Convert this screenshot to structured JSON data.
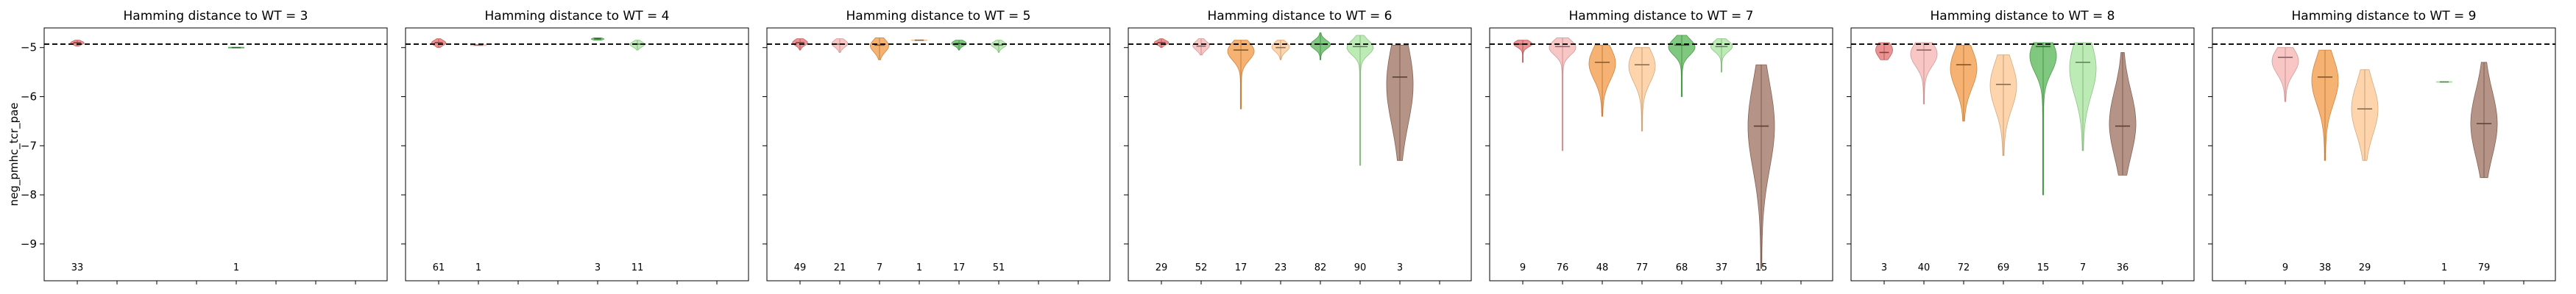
{
  "chart_data": {
    "type": "violin",
    "ylabel": "neg_pmhc_tcr_pae",
    "ylim": [
      -9.75,
      -4.6
    ],
    "yticks": [
      -5,
      -6,
      -7,
      -8,
      -9
    ],
    "reference_line": -4.93,
    "group_colors": [
      "#e57373",
      "#f7b6b6",
      "#f39c4a",
      "#fcc894",
      "#5cb85c",
      "#a9e5a0",
      "#a07565"
    ],
    "panels": [
      {
        "title": "Hamming distance to WT = 3",
        "violins": [
          {
            "pos": 1,
            "count": "33",
            "median": -4.9,
            "min": -4.97,
            "max": -4.85,
            "q1": -4.93,
            "q3": -4.88
          },
          {
            "pos": 5,
            "count": "1",
            "median": -5.0,
            "min": -5.0,
            "max": -5.0,
            "q1": -5.0,
            "q3": -5.0
          }
        ]
      },
      {
        "title": "Hamming distance to WT = 4",
        "violins": [
          {
            "pos": 1,
            "count": "61",
            "median": -4.9,
            "min": -5.0,
            "max": -4.82,
            "q1": -4.94,
            "q3": -4.87
          },
          {
            "pos": 2,
            "count": "1",
            "median": -4.95,
            "min": -4.95,
            "max": -4.95,
            "q1": -4.95,
            "q3": -4.95
          },
          {
            "pos": 5,
            "count": "3",
            "median": -4.82,
            "min": -4.85,
            "max": -4.8,
            "q1": -4.84,
            "q3": -4.81
          },
          {
            "pos": 6,
            "count": "11",
            "median": -4.93,
            "min": -5.05,
            "max": -4.85,
            "q1": -4.97,
            "q3": -4.9
          }
        ]
      },
      {
        "title": "Hamming distance to WT = 5",
        "violins": [
          {
            "pos": 1,
            "count": "49",
            "median": -4.9,
            "min": -5.05,
            "max": -4.82,
            "q1": -4.94,
            "q3": -4.86
          },
          {
            "pos": 2,
            "count": "21",
            "median": -4.93,
            "min": -5.1,
            "max": -4.82,
            "q1": -4.97,
            "q3": -4.87
          },
          {
            "pos": 3,
            "count": "7",
            "median": -4.95,
            "min": -5.25,
            "max": -4.8,
            "q1": -5.05,
            "q3": -4.88
          },
          {
            "pos": 4,
            "count": "1",
            "median": -4.85,
            "min": -4.85,
            "max": -4.85,
            "q1": -4.85,
            "q3": -4.85
          },
          {
            "pos": 5,
            "count": "17",
            "median": -4.92,
            "min": -5.05,
            "max": -4.85,
            "q1": -4.95,
            "q3": -4.88
          },
          {
            "pos": 6,
            "count": "51",
            "median": -4.95,
            "min": -5.1,
            "max": -4.85,
            "q1": -4.98,
            "q3": -4.9
          }
        ]
      },
      {
        "title": "Hamming distance to WT = 6",
        "violins": [
          {
            "pos": 1,
            "count": "29",
            "median": -4.9,
            "min": -5.0,
            "max": -4.82,
            "q1": -4.93,
            "q3": -4.87
          },
          {
            "pos": 2,
            "count": "52",
            "median": -4.97,
            "min": -5.15,
            "max": -4.82,
            "q1": -5.02,
            "q3": -4.9
          },
          {
            "pos": 3,
            "count": "17",
            "median": -5.05,
            "min": -6.25,
            "max": -4.85,
            "q1": -5.2,
            "q3": -4.95
          },
          {
            "pos": 4,
            "count": "23",
            "median": -5.0,
            "min": -5.25,
            "max": -4.85,
            "q1": -5.05,
            "q3": -4.92
          },
          {
            "pos": 5,
            "count": "82",
            "median": -4.93,
            "min": -5.25,
            "max": -4.7,
            "q1": -5.0,
            "q3": -4.88
          },
          {
            "pos": 6,
            "count": "90",
            "median": -4.98,
            "min": -7.4,
            "max": -4.75,
            "q1": -5.1,
            "q3": -4.9
          },
          {
            "pos": 7,
            "count": "3",
            "median": -5.6,
            "min": -7.3,
            "max": -4.95,
            "q1": -6.3,
            "q3": -5.2
          }
        ]
      },
      {
        "title": "Hamming distance to WT = 7",
        "violins": [
          {
            "pos": 1,
            "count": "9",
            "median": -4.93,
            "min": -5.3,
            "max": -4.85,
            "q1": -4.97,
            "q3": -4.88
          },
          {
            "pos": 2,
            "count": "76",
            "median": -4.98,
            "min": -7.1,
            "max": -4.8,
            "q1": -5.1,
            "q3": -4.9
          },
          {
            "pos": 3,
            "count": "48",
            "median": -5.3,
            "min": -6.4,
            "max": -4.95,
            "q1": -5.55,
            "q3": -5.1
          },
          {
            "pos": 4,
            "count": "77",
            "median": -5.35,
            "min": -6.7,
            "max": -5.0,
            "q1": -5.6,
            "q3": -5.15
          },
          {
            "pos": 5,
            "count": "68",
            "median": -4.95,
            "min": -6.0,
            "max": -4.75,
            "q1": -5.1,
            "q3": -4.88
          },
          {
            "pos": 6,
            "count": "37",
            "median": -4.98,
            "min": -5.5,
            "max": -4.82,
            "q1": -5.05,
            "q3": -4.9
          },
          {
            "pos": 7,
            "count": "15",
            "median": -6.6,
            "min": -9.5,
            "max": -5.35,
            "q1": -7.2,
            "q3": -6.0
          }
        ]
      },
      {
        "title": "Hamming distance to WT = 8",
        "violins": [
          {
            "pos": 1,
            "count": "3",
            "median": -5.1,
            "min": -5.25,
            "max": -4.9,
            "q1": -5.15,
            "q3": -4.95
          },
          {
            "pos": 2,
            "count": "40",
            "median": -5.05,
            "min": -6.15,
            "max": -4.9,
            "q1": -5.3,
            "q3": -4.97
          },
          {
            "pos": 3,
            "count": "72",
            "median": -5.35,
            "min": -6.5,
            "max": -4.95,
            "q1": -5.7,
            "q3": -5.15
          },
          {
            "pos": 4,
            "count": "69",
            "median": -5.75,
            "min": -7.2,
            "max": -5.15,
            "q1": -6.1,
            "q3": -5.45
          },
          {
            "pos": 5,
            "count": "15",
            "median": -4.98,
            "min": -8.0,
            "max": -4.9,
            "q1": -5.4,
            "q3": -4.95
          },
          {
            "pos": 6,
            "count": "7",
            "median": -5.3,
            "min": -7.1,
            "max": -4.9,
            "q1": -5.8,
            "q3": -5.05
          },
          {
            "pos": 7,
            "count": "36",
            "median": -6.6,
            "min": -7.6,
            "max": -5.1,
            "q1": -7.0,
            "q3": -6.1
          }
        ]
      },
      {
        "title": "Hamming distance to WT = 9",
        "violins": [
          {
            "pos": 2,
            "count": "9",
            "median": -5.2,
            "min": -6.1,
            "max": -5.0,
            "q1": -5.45,
            "q3": -5.1
          },
          {
            "pos": 3,
            "count": "38",
            "median": -5.6,
            "min": -7.3,
            "max": -5.05,
            "q1": -6.0,
            "q3": -5.35
          },
          {
            "pos": 4,
            "count": "29",
            "median": -6.25,
            "min": -7.3,
            "max": -5.45,
            "q1": -6.6,
            "q3": -5.9
          },
          {
            "pos": 6,
            "count": "1",
            "median": -5.7,
            "min": -5.7,
            "max": -5.7,
            "q1": -5.7,
            "q3": -5.7
          },
          {
            "pos": 7,
            "count": "79",
            "median": -6.55,
            "min": -7.65,
            "max": -5.3,
            "q1": -7.0,
            "q3": -6.1
          }
        ]
      }
    ]
  }
}
